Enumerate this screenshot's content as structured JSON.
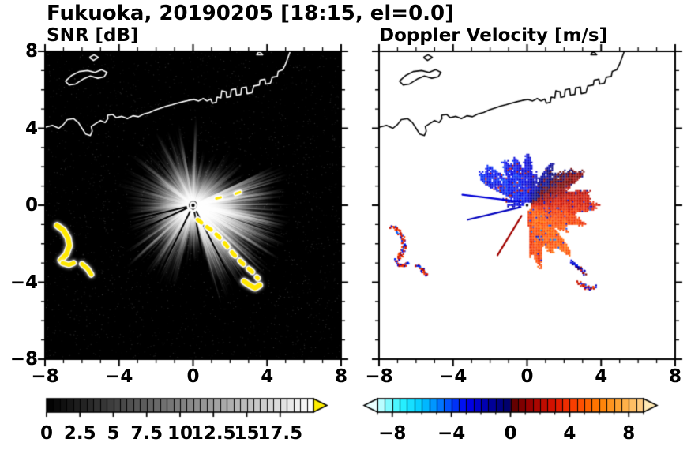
{
  "header": {
    "title": "Fukuoka, 20190205 [18:15, el=0.0]"
  },
  "chart_data": [
    {
      "id": "snr",
      "type": "heatmap",
      "title": "SNR [dB]",
      "units": "dB",
      "xlim": [
        -8,
        8
      ],
      "ylim": [
        -8,
        8
      ],
      "xticks": [
        -8,
        -4,
        0,
        4,
        8
      ],
      "xtick_labels": [
        "−8",
        "−4",
        "0",
        "4",
        "8"
      ],
      "yticks": [
        8,
        4,
        0,
        -4,
        -8
      ],
      "ytick_labels": [
        "8",
        "4",
        "0",
        "−4",
        "−8"
      ],
      "minor_tick_step": 1,
      "grid": false,
      "background_color": "#000000",
      "coastline_color": "#ffffff",
      "radar_center": [
        0,
        0
      ],
      "colorbar": {
        "range": [
          0,
          20
        ],
        "cell_step": 0.5,
        "major_ticks": [
          0,
          2.5,
          5,
          7.5,
          10,
          12.5,
          15,
          17.5
        ],
        "labels": [
          "0",
          "2.5",
          "5",
          "7.5",
          "10",
          "12.5",
          "15",
          "17.5"
        ],
        "stops": [
          [
            0,
            "#000000"
          ],
          [
            20,
            "#ffffff"
          ]
        ],
        "over_arrow_color": "#ffee00"
      },
      "beam_sectors": [
        {
          "az0": -75,
          "az1": 25,
          "imin": 0.22,
          "imax": 0.7,
          "lmin": 3.0,
          "lmax": 5.4
        },
        {
          "az0": 25,
          "az1": 60,
          "imin": 0.06,
          "imax": 0.28,
          "lmin": 1.6,
          "lmax": 3.6
        },
        {
          "az0": 60,
          "az1": 100,
          "imin": 0.05,
          "imax": 0.22,
          "lmin": 1.4,
          "lmax": 3.0
        },
        {
          "az0": 100,
          "az1": 170,
          "imin": 0.07,
          "imax": 0.3,
          "lmin": 1.8,
          "lmax": 4.4
        },
        {
          "az0": 170,
          "az1": 212,
          "imin": 0.1,
          "imax": 0.38,
          "lmin": 1.8,
          "lmax": 3.8
        },
        {
          "az0": 212,
          "az1": 258,
          "imin": 0.1,
          "imax": 0.42,
          "lmin": 2.0,
          "lmax": 4.6
        },
        {
          "az0": 258,
          "az1": 285,
          "imin": 0.08,
          "imax": 0.3,
          "lmin": 1.6,
          "lmax": 3.2
        }
      ],
      "bright_beams": [
        {
          "az": 88,
          "len": 4.6,
          "i": 0.5
        },
        {
          "az": 118,
          "len": 4.3,
          "i": 0.42
        },
        {
          "az": 141,
          "len": 4.1,
          "i": 0.4
        },
        {
          "az": 222,
          "len": 4.8,
          "i": 0.5
        },
        {
          "az": 236,
          "len": 4.3,
          "i": 0.45
        },
        {
          "az": -31,
          "len": 5.4,
          "i": 0.85
        },
        {
          "az": -14,
          "len": 5.1,
          "i": 0.7
        },
        {
          "az": -48,
          "len": 5.0,
          "i": 0.6
        }
      ],
      "blocked_beams": [
        {
          "az": 193,
          "len": 4.6
        },
        {
          "az": 204,
          "len": 4.4
        },
        {
          "az": 243,
          "len": 4.2
        },
        {
          "az": 281,
          "len": 2.6
        },
        {
          "az": 298,
          "len": 5.2
        }
      ],
      "clutter_color": "#ffe800",
      "clutter_paths": [
        {
          "dashed": false,
          "width": 6,
          "pts": [
            [
              -7.35,
              -1.05
            ],
            [
              -7.0,
              -1.3
            ],
            [
              -6.75,
              -1.7
            ],
            [
              -6.68,
              -2.1
            ],
            [
              -6.85,
              -2.55
            ],
            [
              -7.15,
              -2.85
            ]
          ]
        },
        {
          "dashed": false,
          "width": 5,
          "pts": [
            [
              -7.05,
              -3.0
            ],
            [
              -6.7,
              -3.1
            ],
            [
              -6.45,
              -3.0
            ]
          ]
        },
        {
          "dashed": false,
          "width": 5,
          "pts": [
            [
              -6.0,
              -3.05
            ],
            [
              -5.7,
              -3.3
            ],
            [
              -5.5,
              -3.6
            ]
          ]
        },
        {
          "dashed": true,
          "width": 5,
          "pts": [
            [
              0.25,
              -0.75
            ],
            [
              0.65,
              -1.05
            ],
            [
              1.0,
              -1.3
            ],
            [
              1.35,
              -1.6
            ],
            [
              1.65,
              -1.9
            ],
            [
              1.9,
              -2.2
            ],
            [
              2.15,
              -2.5
            ],
            [
              2.4,
              -2.75
            ],
            [
              2.65,
              -3.0
            ],
            [
              2.95,
              -3.25
            ],
            [
              3.25,
              -3.5
            ],
            [
              3.5,
              -3.8
            ]
          ]
        },
        {
          "dashed": false,
          "width": 6,
          "pts": [
            [
              2.75,
              -3.95
            ],
            [
              3.05,
              -4.15
            ],
            [
              3.35,
              -4.3
            ],
            [
              3.6,
              -4.15
            ]
          ]
        },
        {
          "dashed": true,
          "width": 3,
          "pts": [
            [
              1.25,
              0.35
            ],
            [
              1.65,
              0.45
            ]
          ]
        },
        {
          "dashed": true,
          "width": 3,
          "pts": [
            [
              2.3,
              0.6
            ],
            [
              2.75,
              0.75
            ]
          ]
        }
      ]
    },
    {
      "id": "doppler",
      "type": "heatmap",
      "title": "Doppler Velocity [m/s]",
      "units": "m/s",
      "xlim": [
        -8,
        8
      ],
      "ylim": [
        -8,
        8
      ],
      "xticks": [
        -8,
        -4,
        0,
        4,
        8
      ],
      "xtick_labels": [
        "−8",
        "−4",
        "0",
        "4",
        "8"
      ],
      "yticks": [
        8,
        4,
        0,
        -4,
        -8
      ],
      "ytick_labels": [
        "8",
        "4",
        "0",
        "−4",
        "−8"
      ],
      "minor_tick_step": 1,
      "grid": false,
      "background_color": "#ffffff",
      "coastline_color": "#000000",
      "radar_center": [
        0,
        0
      ],
      "colorbar": {
        "range": [
          -9,
          9
        ],
        "cell_step": 0.5,
        "major_ticks": [
          -8,
          -4,
          0,
          4,
          8
        ],
        "labels": [
          "−8",
          "−4",
          "0",
          "4",
          "8"
        ],
        "minor_tick_step": 1,
        "stops": [
          [
            -9,
            "#d4ffff"
          ],
          [
            -7.5,
            "#2ef5ff"
          ],
          [
            -6,
            "#00c8ff"
          ],
          [
            -4.5,
            "#0064ff"
          ],
          [
            -3,
            "#0000f0"
          ],
          [
            -1.2,
            "#000096"
          ],
          [
            -0.05,
            "#000064"
          ],
          [
            0.05,
            "#5a0000"
          ],
          [
            1.2,
            "#960000"
          ],
          [
            3,
            "#dc1400"
          ],
          [
            4.5,
            "#ff4600"
          ],
          [
            6,
            "#ff7d00"
          ],
          [
            7.5,
            "#ffaa3c"
          ],
          [
            9,
            "#ffd28c"
          ]
        ],
        "under_arrow_color": "#eaffff",
        "over_arrow_color": "#ffe9b4"
      },
      "wind_field": {
        "v_peak_away": 5.0,
        "neg_scale": 0.65,
        "az_of_max_deg": -50,
        "noise": 0.9
      },
      "extent_sectors": [
        {
          "az0": -88,
          "az1": 40,
          "base": 2.9,
          "jag": 1.3,
          "fill": 1.0
        },
        {
          "az0": 40,
          "az1": 95,
          "base": 2.3,
          "jag": 1.1,
          "fill": 0.97
        },
        {
          "az0": 95,
          "az1": 155,
          "base": 2.4,
          "jag": 1.1,
          "fill": 0.97
        },
        {
          "az0": 155,
          "az1": 186,
          "base": 1.3,
          "jag": 1.0,
          "fill": 0.8
        },
        {
          "az0": 186,
          "az1": 272,
          "base": 0.0,
          "jag": 0.5,
          "fill": 0.08
        }
      ],
      "streaks": [
        {
          "pts": [
            [
              -0.35,
              0.18
            ],
            [
              -3.5,
              0.55
            ]
          ],
          "v": -2.5
        },
        {
          "pts": [
            [
              -0.35,
              -0.1
            ],
            [
              -3.2,
              -0.75
            ]
          ],
          "v": -2.0
        },
        {
          "pts": [
            [
              -0.3,
              -0.55
            ],
            [
              -1.6,
              -2.6
            ]
          ],
          "v": 1.5
        }
      ],
      "speckle_patches": [
        {
          "pts": [
            [
              -7.35,
              -1.05
            ],
            [
              -7.0,
              -1.3
            ],
            [
              -6.75,
              -1.7
            ],
            [
              -6.68,
              -2.1
            ],
            [
              -6.85,
              -2.55
            ],
            [
              -7.15,
              -2.85
            ]
          ],
          "v": 3.5,
          "width": 5
        },
        {
          "pts": [
            [
              -7.05,
              -3.0
            ],
            [
              -6.7,
              -3.1
            ],
            [
              -6.45,
              -3.0
            ]
          ],
          "v": 3.0,
          "width": 4
        },
        {
          "pts": [
            [
              -6.0,
              -3.05
            ],
            [
              -5.7,
              -3.3
            ],
            [
              -5.5,
              -3.6
            ]
          ],
          "v": 3.2,
          "width": 4
        },
        {
          "pts": [
            [
              2.75,
              -3.95
            ],
            [
              3.05,
              -4.15
            ],
            [
              3.35,
              -4.3
            ],
            [
              3.6,
              -4.15
            ]
          ],
          "v": 3.0,
          "width": 5
        },
        {
          "pts": [
            [
              2.4,
              -2.9
            ],
            [
              2.75,
              -3.2
            ],
            [
              3.1,
              -3.5
            ]
          ],
          "v": -2.0,
          "width": 4
        }
      ]
    }
  ],
  "coastline": [
    [
      [
        -8,
        4.05
      ],
      [
        -7.6,
        4.15
      ],
      [
        -7.25,
        4.0
      ],
      [
        -7.0,
        4.2
      ],
      [
        -6.8,
        4.45
      ],
      [
        -6.45,
        4.5
      ],
      [
        -6.2,
        4.3
      ],
      [
        -6.0,
        4.0
      ],
      [
        -5.8,
        3.7
      ],
      [
        -5.55,
        3.62
      ],
      [
        -5.45,
        3.85
      ],
      [
        -5.5,
        4.1
      ],
      [
        -5.25,
        4.25
      ],
      [
        -5.0,
        4.4
      ],
      [
        -4.75,
        4.3
      ],
      [
        -4.6,
        4.5
      ],
      [
        -4.62,
        4.68
      ],
      [
        -4.35,
        4.72
      ],
      [
        -4.15,
        4.55
      ],
      [
        -3.85,
        4.62
      ],
      [
        -3.55,
        4.5
      ],
      [
        -3.25,
        4.65
      ],
      [
        -2.95,
        4.6
      ],
      [
        -2.65,
        4.75
      ],
      [
        -2.35,
        4.82
      ],
      [
        -2.05,
        4.95
      ],
      [
        -1.75,
        5.05
      ],
      [
        -1.45,
        5.15
      ],
      [
        -1.15,
        5.22
      ],
      [
        -0.85,
        5.3
      ],
      [
        -0.55,
        5.38
      ],
      [
        -0.25,
        5.45
      ],
      [
        0.05,
        5.5
      ],
      [
        0.3,
        5.42
      ],
      [
        0.55,
        5.55
      ],
      [
        0.75,
        5.42
      ],
      [
        0.95,
        5.52
      ],
      [
        1.05,
        5.3
      ],
      [
        1.25,
        5.35
      ],
      [
        1.3,
        5.62
      ],
      [
        1.5,
        5.58
      ],
      [
        1.55,
        5.95
      ],
      [
        1.78,
        5.9
      ],
      [
        1.82,
        5.6
      ],
      [
        2.02,
        5.65
      ],
      [
        2.06,
        6.0
      ],
      [
        2.3,
        6.05
      ],
      [
        2.34,
        5.72
      ],
      [
        2.58,
        5.76
      ],
      [
        2.62,
        6.1
      ],
      [
        2.88,
        6.14
      ],
      [
        2.92,
        5.8
      ],
      [
        3.18,
        5.85
      ],
      [
        3.28,
        6.2
      ],
      [
        3.58,
        6.25
      ],
      [
        3.62,
        6.5
      ],
      [
        3.88,
        6.55
      ],
      [
        3.92,
        6.3
      ],
      [
        4.18,
        6.35
      ],
      [
        4.28,
        6.65
      ],
      [
        4.55,
        6.7
      ],
      [
        4.6,
        6.95
      ],
      [
        4.85,
        7.05
      ],
      [
        5.0,
        7.35
      ],
      [
        5.12,
        7.65
      ],
      [
        5.25,
        8.0
      ]
    ],
    [
      [
        -6.9,
        6.45
      ],
      [
        -6.55,
        6.75
      ],
      [
        -6.15,
        6.95
      ],
      [
        -5.7,
        7.0
      ],
      [
        -5.3,
        6.9
      ],
      [
        -4.95,
        7.05
      ],
      [
        -4.65,
        6.9
      ],
      [
        -4.8,
        6.68
      ],
      [
        -5.15,
        6.6
      ],
      [
        -5.55,
        6.72
      ],
      [
        -5.95,
        6.55
      ],
      [
        -6.35,
        6.3
      ],
      [
        -6.7,
        6.25
      ],
      [
        -6.9,
        6.45
      ]
    ],
    [
      [
        -5.6,
        7.68
      ],
      [
        -5.35,
        7.82
      ],
      [
        -5.12,
        7.68
      ],
      [
        -5.38,
        7.52
      ],
      [
        -5.6,
        7.68
      ]
    ],
    [
      [
        3.42,
        7.82
      ],
      [
        3.58,
        8.0
      ],
      [
        3.76,
        7.82
      ],
      [
        3.42,
        7.82
      ]
    ]
  ]
}
